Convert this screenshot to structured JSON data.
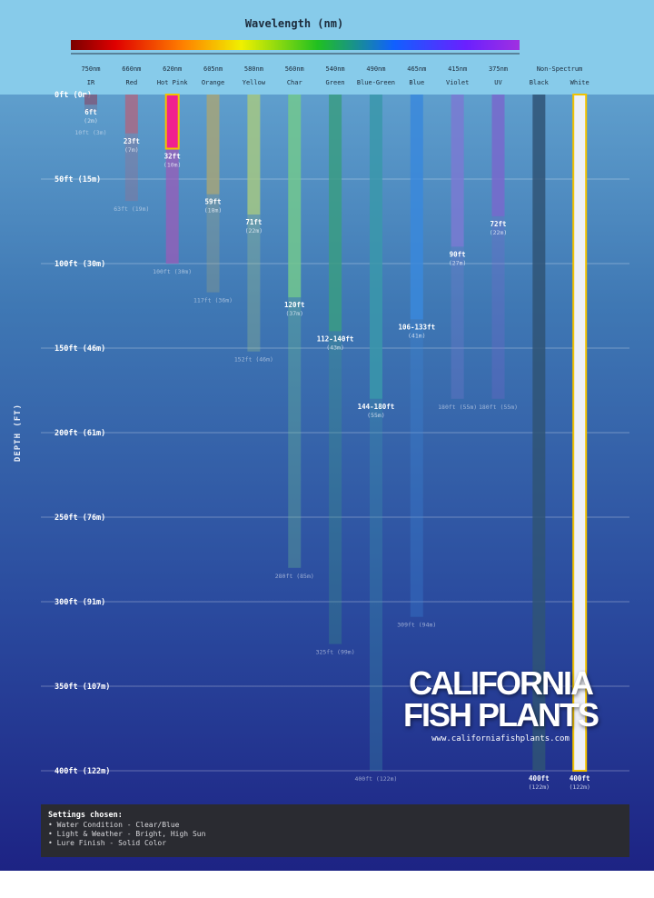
{
  "chart_data": {
    "type": "bar",
    "title": "Wavelength (nm)",
    "ylabel": "DEPTH (FT)",
    "ylim": [
      0,
      400
    ],
    "y_ticks": [
      {
        "ft": 0,
        "label": "0ft (0m)"
      },
      {
        "ft": 50,
        "label": "50ft (15m)"
      },
      {
        "ft": 100,
        "label": "100ft (30m)"
      },
      {
        "ft": 150,
        "label": "150ft (46m)"
      },
      {
        "ft": 200,
        "label": "200ft (61m)"
      },
      {
        "ft": 250,
        "label": "250ft (76m)"
      },
      {
        "ft": 300,
        "label": "300ft (91m)"
      },
      {
        "ft": 350,
        "label": "350ft (107m)"
      },
      {
        "ft": 400,
        "label": "400ft (122m)"
      }
    ],
    "grid": true,
    "group_label_non_spectrum": "Non-Spectrum",
    "series": [
      {
        "wavelength": "750nm",
        "name": "IR",
        "color": "#7b5c7e",
        "visible_ft": 6,
        "visible_label": "6ft",
        "visible_m_label": "(2m)",
        "max_ft": 10,
        "max_label": "10ft (3m)",
        "highlight": false
      },
      {
        "wavelength": "660nm",
        "name": "Red",
        "color": "#a86a86",
        "visible_ft": 23,
        "visible_label": "23ft",
        "visible_m_label": "(7m)",
        "max_ft": 63,
        "max_label": "63ft (19m)",
        "highlight": false
      },
      {
        "wavelength": "620nm",
        "name": "Hot Pink",
        "color": "#f0208f",
        "fade_color": "#9a5cb8",
        "visible_ft": 32,
        "visible_label": "32ft",
        "visible_m_label": "(10m)",
        "max_ft": 100,
        "max_label": "100ft (30m)",
        "highlight": true
      },
      {
        "wavelength": "605nm",
        "name": "Orange",
        "color": "#a5a47a",
        "visible_ft": 59,
        "visible_label": "59ft",
        "visible_m_label": "(18m)",
        "max_ft": 117,
        "max_label": "117ft (36m)",
        "highlight": false
      },
      {
        "wavelength": "580nm",
        "name": "Yellow",
        "color": "#a4c884",
        "visible_ft": 71,
        "visible_label": "71ft",
        "visible_m_label": "(22m)",
        "max_ft": 152,
        "max_label": "152ft (46m)",
        "highlight": false
      },
      {
        "wavelength": "560nm",
        "name": "Char",
        "color": "#72c88e",
        "visible_ft": 120,
        "visible_label": "120ft",
        "visible_m_label": "(37m)",
        "max_ft": 280,
        "max_label": "280ft (85m)",
        "highlight": false
      },
      {
        "wavelength": "540nm",
        "name": "Green",
        "color": "#3a9c82",
        "visible_ft": 140,
        "visible_label": "112-140ft",
        "visible_m_label": "(43m)",
        "max_ft": 325,
        "max_label": "325ft (99m)",
        "highlight": false
      },
      {
        "wavelength": "490nm",
        "name": "Blue-Green",
        "color": "#3a98aa",
        "visible_ft": 180,
        "visible_label": "144-180ft",
        "visible_m_label": "(55m)",
        "max_ft": 400,
        "max_label": "400ft (122m)",
        "highlight": false
      },
      {
        "wavelength": "465nm",
        "name": "Blue",
        "color": "#3a88dc",
        "visible_ft": 133,
        "visible_label": "106-133ft",
        "visible_m_label": "(41m)",
        "max_ft": 309,
        "max_label": "309ft (94m)",
        "highlight": false
      },
      {
        "wavelength": "415nm",
        "name": "Violet",
        "color": "#7a7ad2",
        "visible_ft": 90,
        "visible_label": "90ft",
        "visible_m_label": "(27m)",
        "max_ft": 180,
        "max_label": "180ft (55m)",
        "highlight": false
      },
      {
        "wavelength": "375nm",
        "name": "UV",
        "color": "#7868cc",
        "visible_ft": 72,
        "visible_label": "72ft",
        "visible_m_label": "(22m)",
        "max_ft": 180,
        "max_label": "180ft (55m)",
        "highlight": false
      },
      {
        "wavelength": "",
        "name": "Black",
        "color": "#2f5475",
        "visible_ft": 400,
        "visible_label": "400ft",
        "visible_m_label": "(122m)",
        "max_ft": 400,
        "max_label": "",
        "highlight": false
      },
      {
        "wavelength": "",
        "name": "White",
        "color": "#eef0f8",
        "visible_ft": 400,
        "visible_label": "400ft",
        "visible_m_label": "(122m)",
        "max_ft": 400,
        "max_label": "",
        "highlight": true
      }
    ],
    "highlight_color": "#f2c200"
  },
  "logo": {
    "line1": "CALIFORNIA",
    "line2": "FISH PLANTS",
    "url": "www.californiafishplants.com"
  },
  "settings": {
    "heading": "Settings chosen:",
    "items": [
      "• Water Condition - Clear/Blue",
      "• Light & Weather - Bright, High Sun",
      "• Lure Finish - Solid Color"
    ]
  }
}
